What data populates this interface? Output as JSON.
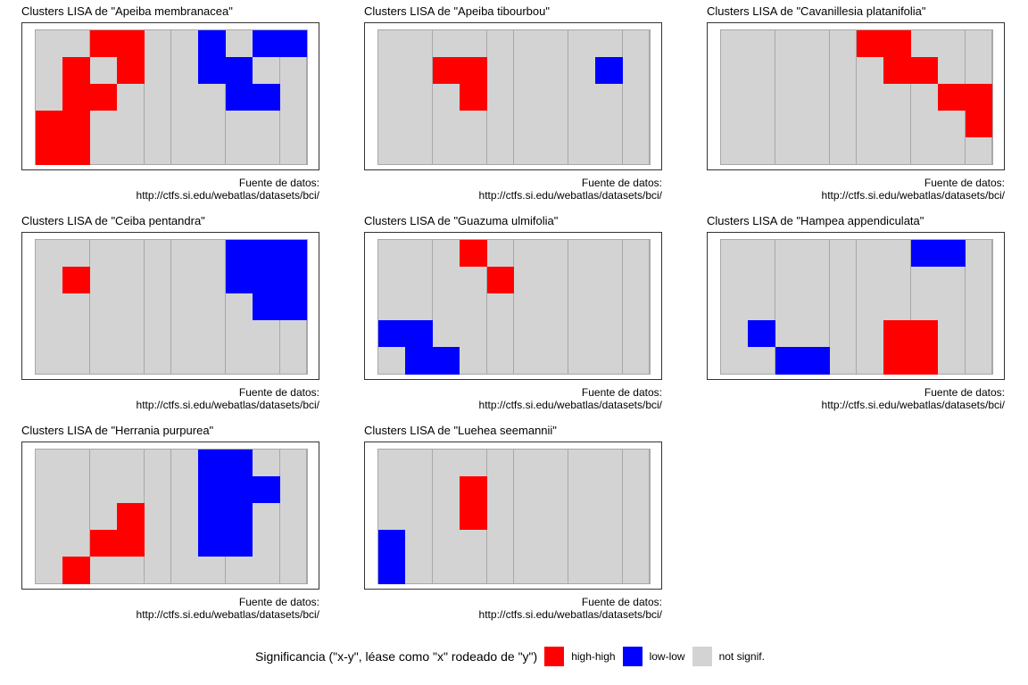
{
  "colors": {
    "high-high": "#ff0000",
    "low-low": "#0000ff",
    "not signif.": "#d3d3d3"
  },
  "source": {
    "line1": "Fuente de datos:",
    "line2": "http://ctfs.si.edu/webatlas/datasets/bci/"
  },
  "legend": {
    "title": "Significancia (\"x-y\", léase como \"x\" rodeado de \"y\")",
    "items": [
      {
        "key": "high-high",
        "label": "high-high"
      },
      {
        "key": "low-low",
        "label": "low-low"
      },
      {
        "key": "not signif.",
        "label": "not signif."
      }
    ]
  },
  "chart_data": [
    {
      "type": "heatmap",
      "title": "Clusters LISA de \"Apeiba membranacea\"",
      "rows": 5,
      "cols": 10,
      "values": [
        "NNHHNNLNLL",
        "NHNHNNLLNN",
        "NHHNNNNLLN",
        "HHNNNNNNNN",
        "HHNNNNNNNN"
      ]
    },
    {
      "type": "heatmap",
      "title": "Clusters LISA de \"Apeiba tibourbou\"",
      "rows": 5,
      "cols": 10,
      "values": [
        "NNNNNNNNNN",
        "NNHHNNNNLN",
        "NNNHNNNNNN",
        "NNNNNNNNNN",
        "NNNNNNNNNN"
      ]
    },
    {
      "type": "heatmap",
      "title": "Clusters LISA de \"Cavanillesia platanifolia\"",
      "rows": 5,
      "cols": 10,
      "values": [
        "NNNNNHHNNN",
        "NNNNNNHHNN",
        "NNNNNNNNHH",
        "NNNNNNNNNH",
        "NNNNNNNNNN"
      ]
    },
    {
      "type": "heatmap",
      "title": "Clusters LISA de \"Ceiba pentandra\"",
      "rows": 5,
      "cols": 10,
      "values": [
        "NNNNNNNLLL",
        "NHNNNNNLLL",
        "NNNNNNNNLL",
        "NNNNNNNNNN",
        "NNNNNNNNNN"
      ]
    },
    {
      "type": "heatmap",
      "title": "Clusters LISA de \"Guazuma ulmifolia\"",
      "rows": 5,
      "cols": 10,
      "values": [
        "NNNHNNNNNN",
        "NNNNHNNNNN",
        "NNNNNNNNNN",
        "LLNNNNNNNN",
        "NLLNNNNNNN"
      ]
    },
    {
      "type": "heatmap",
      "title": "Clusters LISA de \"Hampea appendiculata\"",
      "rows": 5,
      "cols": 10,
      "values": [
        "NNNNNNNLLN",
        "NNNNNNNNNN",
        "NNNNNNNNNN",
        "NLNNNNHHNN",
        "NNLLNNHHNN"
      ]
    },
    {
      "type": "heatmap",
      "title": "Clusters LISA de \"Herrania purpurea\"",
      "rows": 5,
      "cols": 10,
      "values": [
        "NNNNNNLLNN",
        "NNNNNNLLLN",
        "NNNHNNLLNN",
        "NNHHNNLLNN",
        "NHNNNNNNNN"
      ]
    },
    {
      "type": "heatmap",
      "title": "Clusters LISA de \"Luehea seemannii\"",
      "rows": 5,
      "cols": 10,
      "values": [
        "NNNNNNNNNN",
        "NNNHNNNNNN",
        "NNNHNNNNNN",
        "LNNNNNNNNN",
        "LNNNNNNNNN"
      ]
    }
  ]
}
